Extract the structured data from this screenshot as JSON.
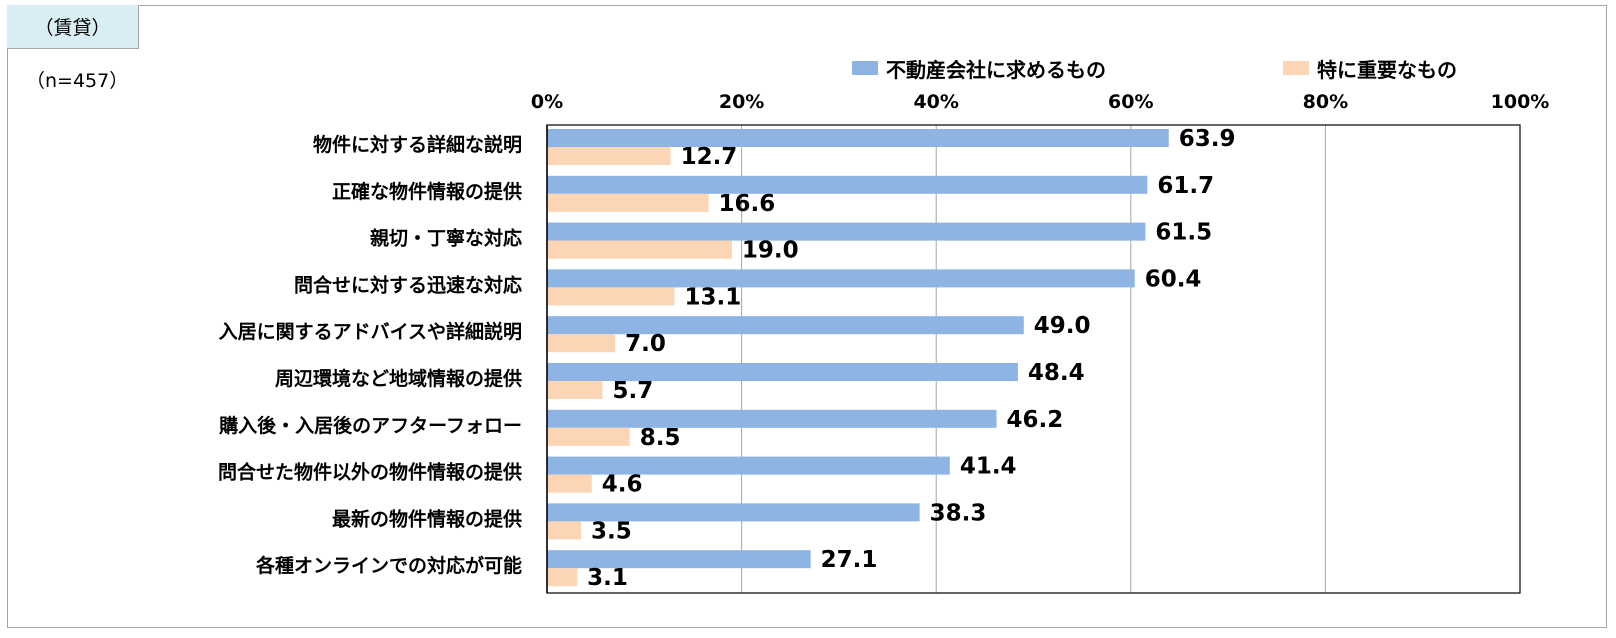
{
  "header": {
    "tag": "（賃貸）",
    "sample_size": "（n=457）"
  },
  "colors": {
    "series1": "#8db4e2",
    "series2": "#fcd5b5",
    "grid": "#a6a6a6",
    "plot_border": "#000000"
  },
  "chart_data": {
    "type": "bar",
    "orientation": "horizontal",
    "categories": [
      "物件に対する詳細な説明",
      "正確な物件情報の提供",
      "親切・丁寧な対応",
      "問合せに対する迅速な対応",
      "入居に関するアドバイスや詳細説明",
      "周辺環境など地域情報の提供",
      "購入後・入居後のアフターフォロー",
      "問合せた物件以外の物件情報の提供",
      "最新の物件情報の提供",
      "各種オンラインでの対応が可能"
    ],
    "series": [
      {
        "name": "不動産会社に求めるもの",
        "values": [
          63.9,
          61.7,
          61.5,
          60.4,
          49.0,
          48.4,
          46.2,
          41.4,
          38.3,
          27.1
        ]
      },
      {
        "name": "特に重要なもの",
        "values": [
          12.7,
          16.6,
          19.0,
          13.1,
          7.0,
          5.7,
          8.5,
          4.6,
          3.5,
          3.1
        ]
      }
    ],
    "value_labels": [
      [
        "63.9",
        "61.7",
        "61.5",
        "60.4",
        "49.0",
        "48.4",
        "46.2",
        "41.4",
        "38.3",
        "27.1"
      ],
      [
        "12.7",
        "16.6",
        "19.0",
        "13.1",
        "7.0",
        "5.7",
        "8.5",
        "4.6",
        "3.5",
        "3.1"
      ]
    ],
    "x_ticks": [
      "0%",
      "20%",
      "40%",
      "60%",
      "80%",
      "100%"
    ],
    "x_tick_values": [
      0,
      20,
      40,
      60,
      80,
      100
    ],
    "xlim": [
      0,
      100
    ],
    "grid": true,
    "legend_position": "top"
  }
}
